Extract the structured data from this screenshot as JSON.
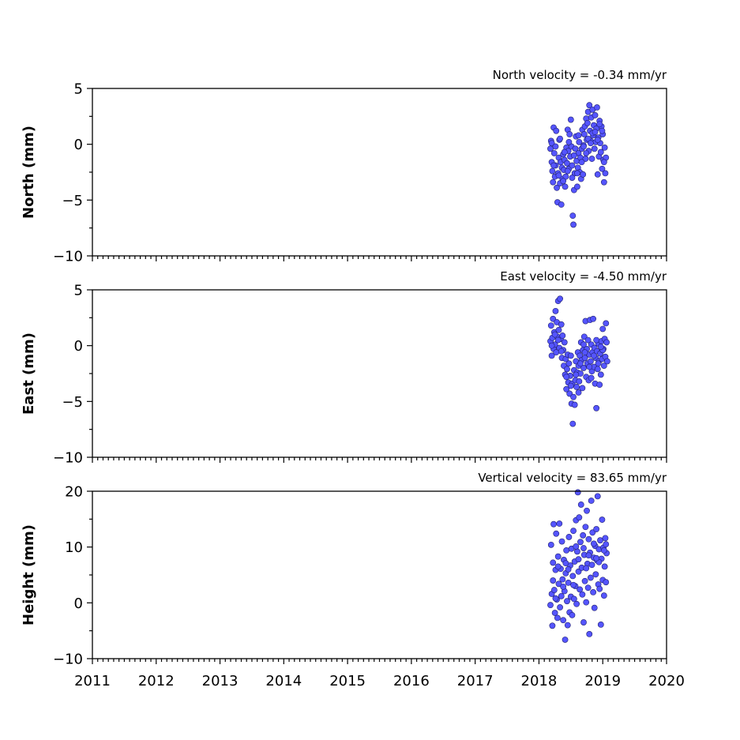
{
  "colors": {
    "marker_fill": "#5555ff",
    "marker_edge": "#1f1f6e",
    "axes": "#000000"
  },
  "chart_data": [
    {
      "type": "scatter",
      "title": "North velocity = -0.34 mm/yr",
      "ylabel": "North (mm)",
      "xlabel": "",
      "xlim": [
        2011,
        2020
      ],
      "ylim": [
        -10,
        5
      ],
      "yticks": [
        5,
        0,
        -5,
        -10
      ],
      "ytick_labels": [
        "5",
        "0",
        "−5",
        "−10"
      ],
      "xticks": [
        2011,
        2012,
        2013,
        2014,
        2015,
        2016,
        2017,
        2018,
        2019,
        2020
      ],
      "xtick_labels": [],
      "grid": false,
      "points": [
        [
          2018.18,
          -0.4
        ],
        [
          2018.19,
          0.3
        ],
        [
          2018.2,
          -1.6
        ],
        [
          2018.21,
          -2.4
        ],
        [
          2018.22,
          -3.4
        ],
        [
          2018.23,
          1.5
        ],
        [
          2018.24,
          -0.8
        ],
        [
          2018.25,
          -2.9
        ],
        [
          2018.26,
          -1.9
        ],
        [
          2018.27,
          1.2
        ],
        [
          2018.28,
          -3.9
        ],
        [
          2018.29,
          -5.2
        ],
        [
          2018.3,
          -2.6
        ],
        [
          2018.31,
          -1.2
        ],
        [
          2018.32,
          0.4
        ],
        [
          2018.33,
          -3.5
        ],
        [
          2018.34,
          -1.6
        ],
        [
          2018.35,
          -5.4
        ],
        [
          2018.36,
          -2.1
        ],
        [
          2018.37,
          -3.1
        ],
        [
          2018.38,
          -0.9
        ],
        [
          2018.39,
          -2.3
        ],
        [
          2018.4,
          -1.4
        ],
        [
          2018.41,
          -3.8
        ],
        [
          2018.42,
          -2.9
        ],
        [
          2018.43,
          -0.3
        ],
        [
          2018.44,
          -1.7
        ],
        [
          2018.45,
          1.3
        ],
        [
          2018.46,
          -0.6
        ],
        [
          2018.47,
          -2.2
        ],
        [
          2018.48,
          0.9
        ],
        [
          2018.49,
          -1.1
        ],
        [
          2018.5,
          2.2
        ],
        [
          2018.51,
          -0.2
        ],
        [
          2018.52,
          -1.9
        ],
        [
          2018.53,
          -6.4
        ],
        [
          2018.54,
          -7.2
        ],
        [
          2018.55,
          -4.1
        ],
        [
          2018.56,
          -2.6
        ],
        [
          2018.57,
          -0.4
        ],
        [
          2018.58,
          0.7
        ],
        [
          2018.59,
          -1.5
        ],
        [
          2018.6,
          -3.8
        ],
        [
          2018.61,
          -2.1
        ],
        [
          2018.62,
          -0.8
        ],
        [
          2018.63,
          0.2
        ],
        [
          2018.64,
          -2.5
        ],
        [
          2018.65,
          -1.2
        ],
        [
          2018.66,
          -3.1
        ],
        [
          2018.67,
          -0.4
        ],
        [
          2018.68,
          1.3
        ],
        [
          2018.69,
          -2.7
        ],
        [
          2018.7,
          -0.1
        ],
        [
          2018.71,
          0.9
        ],
        [
          2018.72,
          1.6
        ],
        [
          2018.73,
          -1.3
        ],
        [
          2018.74,
          2.3
        ],
        [
          2018.75,
          0.4
        ],
        [
          2018.76,
          1.9
        ],
        [
          2018.77,
          2.9
        ],
        [
          2018.78,
          -0.6
        ],
        [
          2018.79,
          3.5
        ],
        [
          2018.8,
          1.2
        ],
        [
          2018.81,
          0.3
        ],
        [
          2018.82,
          2.4
        ],
        [
          2018.83,
          -1.3
        ],
        [
          2018.84,
          3.1
        ],
        [
          2018.85,
          0.8
        ],
        [
          2018.86,
          1.7
        ],
        [
          2018.87,
          -0.4
        ],
        [
          2018.88,
          2.6
        ],
        [
          2018.89,
          0.2
        ],
        [
          2018.9,
          1.4
        ],
        [
          2018.91,
          3.3
        ],
        [
          2018.92,
          -2.7
        ],
        [
          2018.93,
          0.6
        ],
        [
          2018.94,
          -1.1
        ],
        [
          2018.95,
          2.1
        ],
        [
          2018.96,
          0.1
        ],
        [
          2018.97,
          -0.7
        ],
        [
          2018.98,
          1.6
        ],
        [
          2018.99,
          -2.2
        ],
        [
          2019.0,
          0.9
        ],
        [
          2019.01,
          -1.4
        ],
        [
          2019.02,
          -3.4
        ],
        [
          2019.03,
          -0.3
        ],
        [
          2019.04,
          -2.6
        ],
        [
          2019.05,
          -1.2
        ],
        [
          2018.2,
          0.1
        ],
        [
          2018.26,
          -0.2
        ],
        [
          2018.33,
          0.5
        ],
        [
          2018.4,
          -0.7
        ],
        [
          2018.47,
          0.2
        ],
        [
          2018.55,
          -1.0
        ],
        [
          2018.62,
          0.8
        ],
        [
          2018.7,
          -0.2
        ],
        [
          2018.77,
          0.5
        ],
        [
          2018.84,
          1.0
        ],
        [
          2018.92,
          0.4
        ],
        [
          2018.99,
          1.2
        ],
        [
          2018.23,
          -1.9
        ],
        [
          2018.31,
          -2.8
        ],
        [
          2018.38,
          -3.3
        ],
        [
          2018.45,
          -2.4
        ],
        [
          2018.52,
          -3.0
        ],
        [
          2018.6,
          -2.6
        ],
        [
          2018.67,
          -1.6
        ],
        [
          2018.74,
          -0.8
        ],
        [
          2018.81,
          0.1
        ],
        [
          2018.88,
          1.1
        ],
        [
          2018.95,
          1.8
        ],
        [
          2019.02,
          -1.6
        ]
      ]
    },
    {
      "type": "scatter",
      "title": "East velocity = -4.50 mm/yr",
      "ylabel": "East (mm)",
      "xlabel": "",
      "xlim": [
        2011,
        2020
      ],
      "ylim": [
        -10,
        5
      ],
      "yticks": [
        5,
        0,
        -5,
        -10
      ],
      "ytick_labels": [
        "5",
        "0",
        "−5",
        "−10"
      ],
      "xticks": [
        2011,
        2012,
        2013,
        2014,
        2015,
        2016,
        2017,
        2018,
        2019,
        2020
      ],
      "xtick_labels": [],
      "grid": false,
      "points": [
        [
          2018.18,
          0.4
        ],
        [
          2018.19,
          1.8
        ],
        [
          2018.2,
          -0.9
        ],
        [
          2018.21,
          0.7
        ],
        [
          2018.22,
          2.4
        ],
        [
          2018.23,
          -0.3
        ],
        [
          2018.24,
          1.2
        ],
        [
          2018.25,
          0.1
        ],
        [
          2018.26,
          3.1
        ],
        [
          2018.27,
          -0.6
        ],
        [
          2018.28,
          2.1
        ],
        [
          2018.29,
          0.8
        ],
        [
          2018.3,
          4.0
        ],
        [
          2018.31,
          1.4
        ],
        [
          2018.32,
          -0.2
        ],
        [
          2018.33,
          4.2
        ],
        [
          2018.34,
          0.6
        ],
        [
          2018.35,
          1.9
        ],
        [
          2018.36,
          -1.1
        ],
        [
          2018.37,
          0.9
        ],
        [
          2018.38,
          -0.4
        ],
        [
          2018.39,
          -1.8
        ],
        [
          2018.4,
          0.3
        ],
        [
          2018.41,
          -2.6
        ],
        [
          2018.42,
          -1.2
        ],
        [
          2018.43,
          -3.9
        ],
        [
          2018.44,
          -2.1
        ],
        [
          2018.45,
          -0.8
        ],
        [
          2018.46,
          -3.3
        ],
        [
          2018.47,
          -1.6
        ],
        [
          2018.48,
          -4.3
        ],
        [
          2018.49,
          -2.7
        ],
        [
          2018.5,
          -0.9
        ],
        [
          2018.51,
          -5.2
        ],
        [
          2018.52,
          -3.4
        ],
        [
          2018.53,
          -7.0
        ],
        [
          2018.54,
          -4.6
        ],
        [
          2018.55,
          -2.2
        ],
        [
          2018.56,
          -5.3
        ],
        [
          2018.57,
          -3.1
        ],
        [
          2018.58,
          -1.4
        ],
        [
          2018.59,
          -3.7
        ],
        [
          2018.6,
          -2.4
        ],
        [
          2018.61,
          -0.6
        ],
        [
          2018.62,
          -1.8
        ],
        [
          2018.63,
          -3.2
        ],
        [
          2018.64,
          -0.9
        ],
        [
          2018.65,
          -2.5
        ],
        [
          2018.66,
          0.3
        ],
        [
          2018.67,
          -1.3
        ],
        [
          2018.68,
          -3.8
        ],
        [
          2018.69,
          -0.4
        ],
        [
          2018.7,
          -2.0
        ],
        [
          2018.71,
          0.8
        ],
        [
          2018.72,
          -1.1
        ],
        [
          2018.73,
          2.2
        ],
        [
          2018.74,
          -2.8
        ],
        [
          2018.75,
          -0.3
        ],
        [
          2018.76,
          -1.6
        ],
        [
          2018.77,
          0.5
        ],
        [
          2018.78,
          -3.1
        ],
        [
          2018.79,
          -0.8
        ],
        [
          2018.8,
          2.3
        ],
        [
          2018.81,
          -1.4
        ],
        [
          2018.82,
          0.1
        ],
        [
          2018.83,
          -2.3
        ],
        [
          2018.84,
          -0.6
        ],
        [
          2018.85,
          2.4
        ],
        [
          2018.86,
          -1.9
        ],
        [
          2018.87,
          -0.2
        ],
        [
          2018.88,
          -3.4
        ],
        [
          2018.89,
          -1.1
        ],
        [
          2018.9,
          -5.6
        ],
        [
          2018.91,
          -0.5
        ],
        [
          2018.92,
          -2.1
        ],
        [
          2018.93,
          0.2
        ],
        [
          2018.94,
          -1.4
        ],
        [
          2018.95,
          -3.5
        ],
        [
          2018.96,
          -0.7
        ],
        [
          2018.97,
          -2.6
        ],
        [
          2018.98,
          0.4
        ],
        [
          2018.99,
          -1.2
        ],
        [
          2019.0,
          1.5
        ],
        [
          2019.01,
          -0.3
        ],
        [
          2019.02,
          -1.8
        ],
        [
          2019.03,
          0.6
        ],
        [
          2019.04,
          -1.0
        ],
        [
          2019.05,
          2.0
        ],
        [
          2019.06,
          0.3
        ],
        [
          2019.07,
          -1.4
        ],
        [
          2018.2,
          0.0
        ],
        [
          2018.25,
          1.0
        ],
        [
          2018.3,
          0.5
        ],
        [
          2018.35,
          -0.5
        ],
        [
          2018.43,
          -2.8
        ],
        [
          2018.5,
          -3.6
        ],
        [
          2018.58,
          -2.6
        ],
        [
          2018.65,
          -1.6
        ],
        [
          2018.72,
          -0.6
        ],
        [
          2018.79,
          -1.9
        ],
        [
          2018.86,
          -0.9
        ],
        [
          2018.93,
          -1.6
        ],
        [
          2019.0,
          -0.4
        ],
        [
          2018.62,
          -4.2
        ],
        [
          2018.7,
          0.1
        ],
        [
          2018.82,
          -2.9
        ],
        [
          2018.9,
          0.5
        ],
        [
          2018.97,
          -0.1
        ]
      ]
    },
    {
      "type": "scatter",
      "title": "Vertical velocity = 83.65 mm/yr",
      "ylabel": "Height (mm)",
      "xlabel": "",
      "xlim": [
        2011,
        2020
      ],
      "ylim": [
        -10,
        20
      ],
      "yticks": [
        20,
        10,
        0,
        -10
      ],
      "ytick_labels": [
        "20",
        "10",
        "0",
        "−10"
      ],
      "xticks": [
        2011,
        2012,
        2013,
        2014,
        2015,
        2016,
        2017,
        2018,
        2019,
        2020
      ],
      "xtick_labels": [
        "2011",
        "2012",
        "2013",
        "2014",
        "2015",
        "2016",
        "2017",
        "2018",
        "2019",
        "2020"
      ],
      "grid": false,
      "points": [
        [
          2018.18,
          -0.4
        ],
        [
          2018.19,
          10.4
        ],
        [
          2018.2,
          1.6
        ],
        [
          2018.21,
          -4.1
        ],
        [
          2018.22,
          7.2
        ],
        [
          2018.23,
          14.1
        ],
        [
          2018.24,
          2.3
        ],
        [
          2018.25,
          -1.8
        ],
        [
          2018.26,
          5.9
        ],
        [
          2018.27,
          12.4
        ],
        [
          2018.28,
          0.6
        ],
        [
          2018.29,
          -2.7
        ],
        [
          2018.3,
          8.3
        ],
        [
          2018.31,
          3.4
        ],
        [
          2018.32,
          14.2
        ],
        [
          2018.33,
          -0.8
        ],
        [
          2018.34,
          6.1
        ],
        [
          2018.35,
          1.2
        ],
        [
          2018.36,
          11.0
        ],
        [
          2018.37,
          4.2
        ],
        [
          2018.38,
          -3.1
        ],
        [
          2018.39,
          7.7
        ],
        [
          2018.4,
          2.1
        ],
        [
          2018.41,
          -6.6
        ],
        [
          2018.42,
          5.3
        ],
        [
          2018.43,
          9.4
        ],
        [
          2018.44,
          0.3
        ],
        [
          2018.45,
          -4.0
        ],
        [
          2018.46,
          3.6
        ],
        [
          2018.47,
          11.8
        ],
        [
          2018.48,
          -1.7
        ],
        [
          2018.49,
          6.7
        ],
        [
          2018.5,
          1.1
        ],
        [
          2018.51,
          9.7
        ],
        [
          2018.52,
          -2.2
        ],
        [
          2018.53,
          4.8
        ],
        [
          2018.54,
          12.9
        ],
        [
          2018.55,
          0.7
        ],
        [
          2018.56,
          7.4
        ],
        [
          2018.57,
          3.0
        ],
        [
          2018.58,
          14.8
        ],
        [
          2018.59,
          -0.2
        ],
        [
          2018.6,
          9.2
        ],
        [
          2018.61,
          19.8
        ],
        [
          2018.62,
          5.6
        ],
        [
          2018.63,
          15.3
        ],
        [
          2018.64,
          2.4
        ],
        [
          2018.65,
          10.9
        ],
        [
          2018.66,
          17.6
        ],
        [
          2018.67,
          6.3
        ],
        [
          2018.68,
          1.5
        ],
        [
          2018.69,
          12.1
        ],
        [
          2018.7,
          -3.5
        ],
        [
          2018.71,
          8.6
        ],
        [
          2018.72,
          3.9
        ],
        [
          2018.73,
          13.6
        ],
        [
          2018.74,
          0.1
        ],
        [
          2018.75,
          16.5
        ],
        [
          2018.76,
          7.0
        ],
        [
          2018.77,
          2.7
        ],
        [
          2018.78,
          11.4
        ],
        [
          2018.79,
          -5.6
        ],
        [
          2018.8,
          9.0
        ],
        [
          2018.81,
          4.5
        ],
        [
          2018.82,
          18.3
        ],
        [
          2018.83,
          6.8
        ],
        [
          2018.84,
          12.6
        ],
        [
          2018.85,
          1.9
        ],
        [
          2018.86,
          8.1
        ],
        [
          2018.87,
          -0.9
        ],
        [
          2018.88,
          10.2
        ],
        [
          2018.89,
          5.1
        ],
        [
          2018.9,
          13.2
        ],
        [
          2018.91,
          7.6
        ],
        [
          2018.92,
          19.1
        ],
        [
          2018.93,
          3.3
        ],
        [
          2018.94,
          9.6
        ],
        [
          2018.95,
          2.5
        ],
        [
          2018.96,
          11.2
        ],
        [
          2018.97,
          -3.9
        ],
        [
          2018.98,
          7.9
        ],
        [
          2018.99,
          14.9
        ],
        [
          2019.0,
          4.1
        ],
        [
          2019.01,
          9.9
        ],
        [
          2019.02,
          1.3
        ],
        [
          2019.03,
          6.5
        ],
        [
          2019.04,
          11.6
        ],
        [
          2019.05,
          3.7
        ],
        [
          2019.06,
          8.9
        ],
        [
          2018.22,
          4.0
        ],
        [
          2018.3,
          6.5
        ],
        [
          2018.38,
          2.9
        ],
        [
          2018.46,
          6.0
        ],
        [
          2018.54,
          3.2
        ],
        [
          2018.62,
          7.8
        ],
        [
          2018.7,
          9.8
        ],
        [
          2018.78,
          8.5
        ],
        [
          2018.86,
          10.6
        ],
        [
          2018.94,
          7.3
        ],
        [
          2019.02,
          9.4
        ],
        [
          2018.26,
          0.8
        ],
        [
          2018.42,
          7.1
        ],
        [
          2018.58,
          10.1
        ],
        [
          2018.74,
          6.2
        ],
        [
          2018.9,
          8.0
        ],
        [
          2019.05,
          10.5
        ]
      ]
    }
  ]
}
